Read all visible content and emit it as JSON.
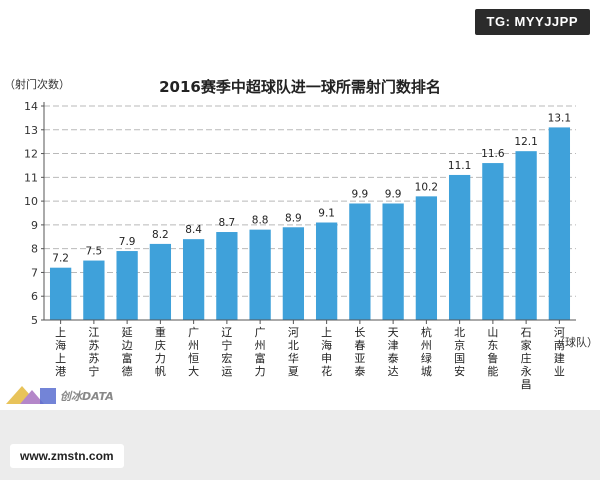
{
  "watermarks": {
    "top_right": "TG: MYYJJPP",
    "bottom_left": "www.zmstn.com",
    "logo": "创冰DATA"
  },
  "colors": {
    "bar": "#3fa1da",
    "grid": "#b9b9b9",
    "axis": "#555555"
  },
  "chart_data": {
    "type": "bar",
    "title": "2016赛季中超球队进一球所需射门数排名",
    "ylabel": "（射门次数）",
    "xlabel": "（球队）",
    "ylim": [
      5,
      14
    ],
    "yticks": [
      5,
      6,
      7,
      8,
      9,
      10,
      11,
      12,
      13,
      14
    ],
    "grid": true,
    "categories": [
      "上海上港",
      "江苏苏宁",
      "延边富德",
      "重庆力帆",
      "广州恒大",
      "辽宁宏运",
      "广州富力",
      "河北华夏",
      "上海申花",
      "长春亚泰",
      "天津泰达",
      "杭州绿城",
      "北京国安",
      "山东鲁能",
      "石家庄永昌",
      "河南建业"
    ],
    "values": [
      7.2,
      7.5,
      7.9,
      8.2,
      8.4,
      8.7,
      8.8,
      8.9,
      9.1,
      9.9,
      9.9,
      10.2,
      11.1,
      11.6,
      12.1,
      13.1
    ],
    "value_labels": [
      "7.2",
      "7.5",
      "7.9",
      "8.2",
      "8.4",
      "8.7",
      "8.8",
      "8.9",
      "9.1",
      "9.9",
      "9.9",
      "10.2",
      "11.1",
      "11.6",
      "12.1",
      "13.1"
    ]
  }
}
